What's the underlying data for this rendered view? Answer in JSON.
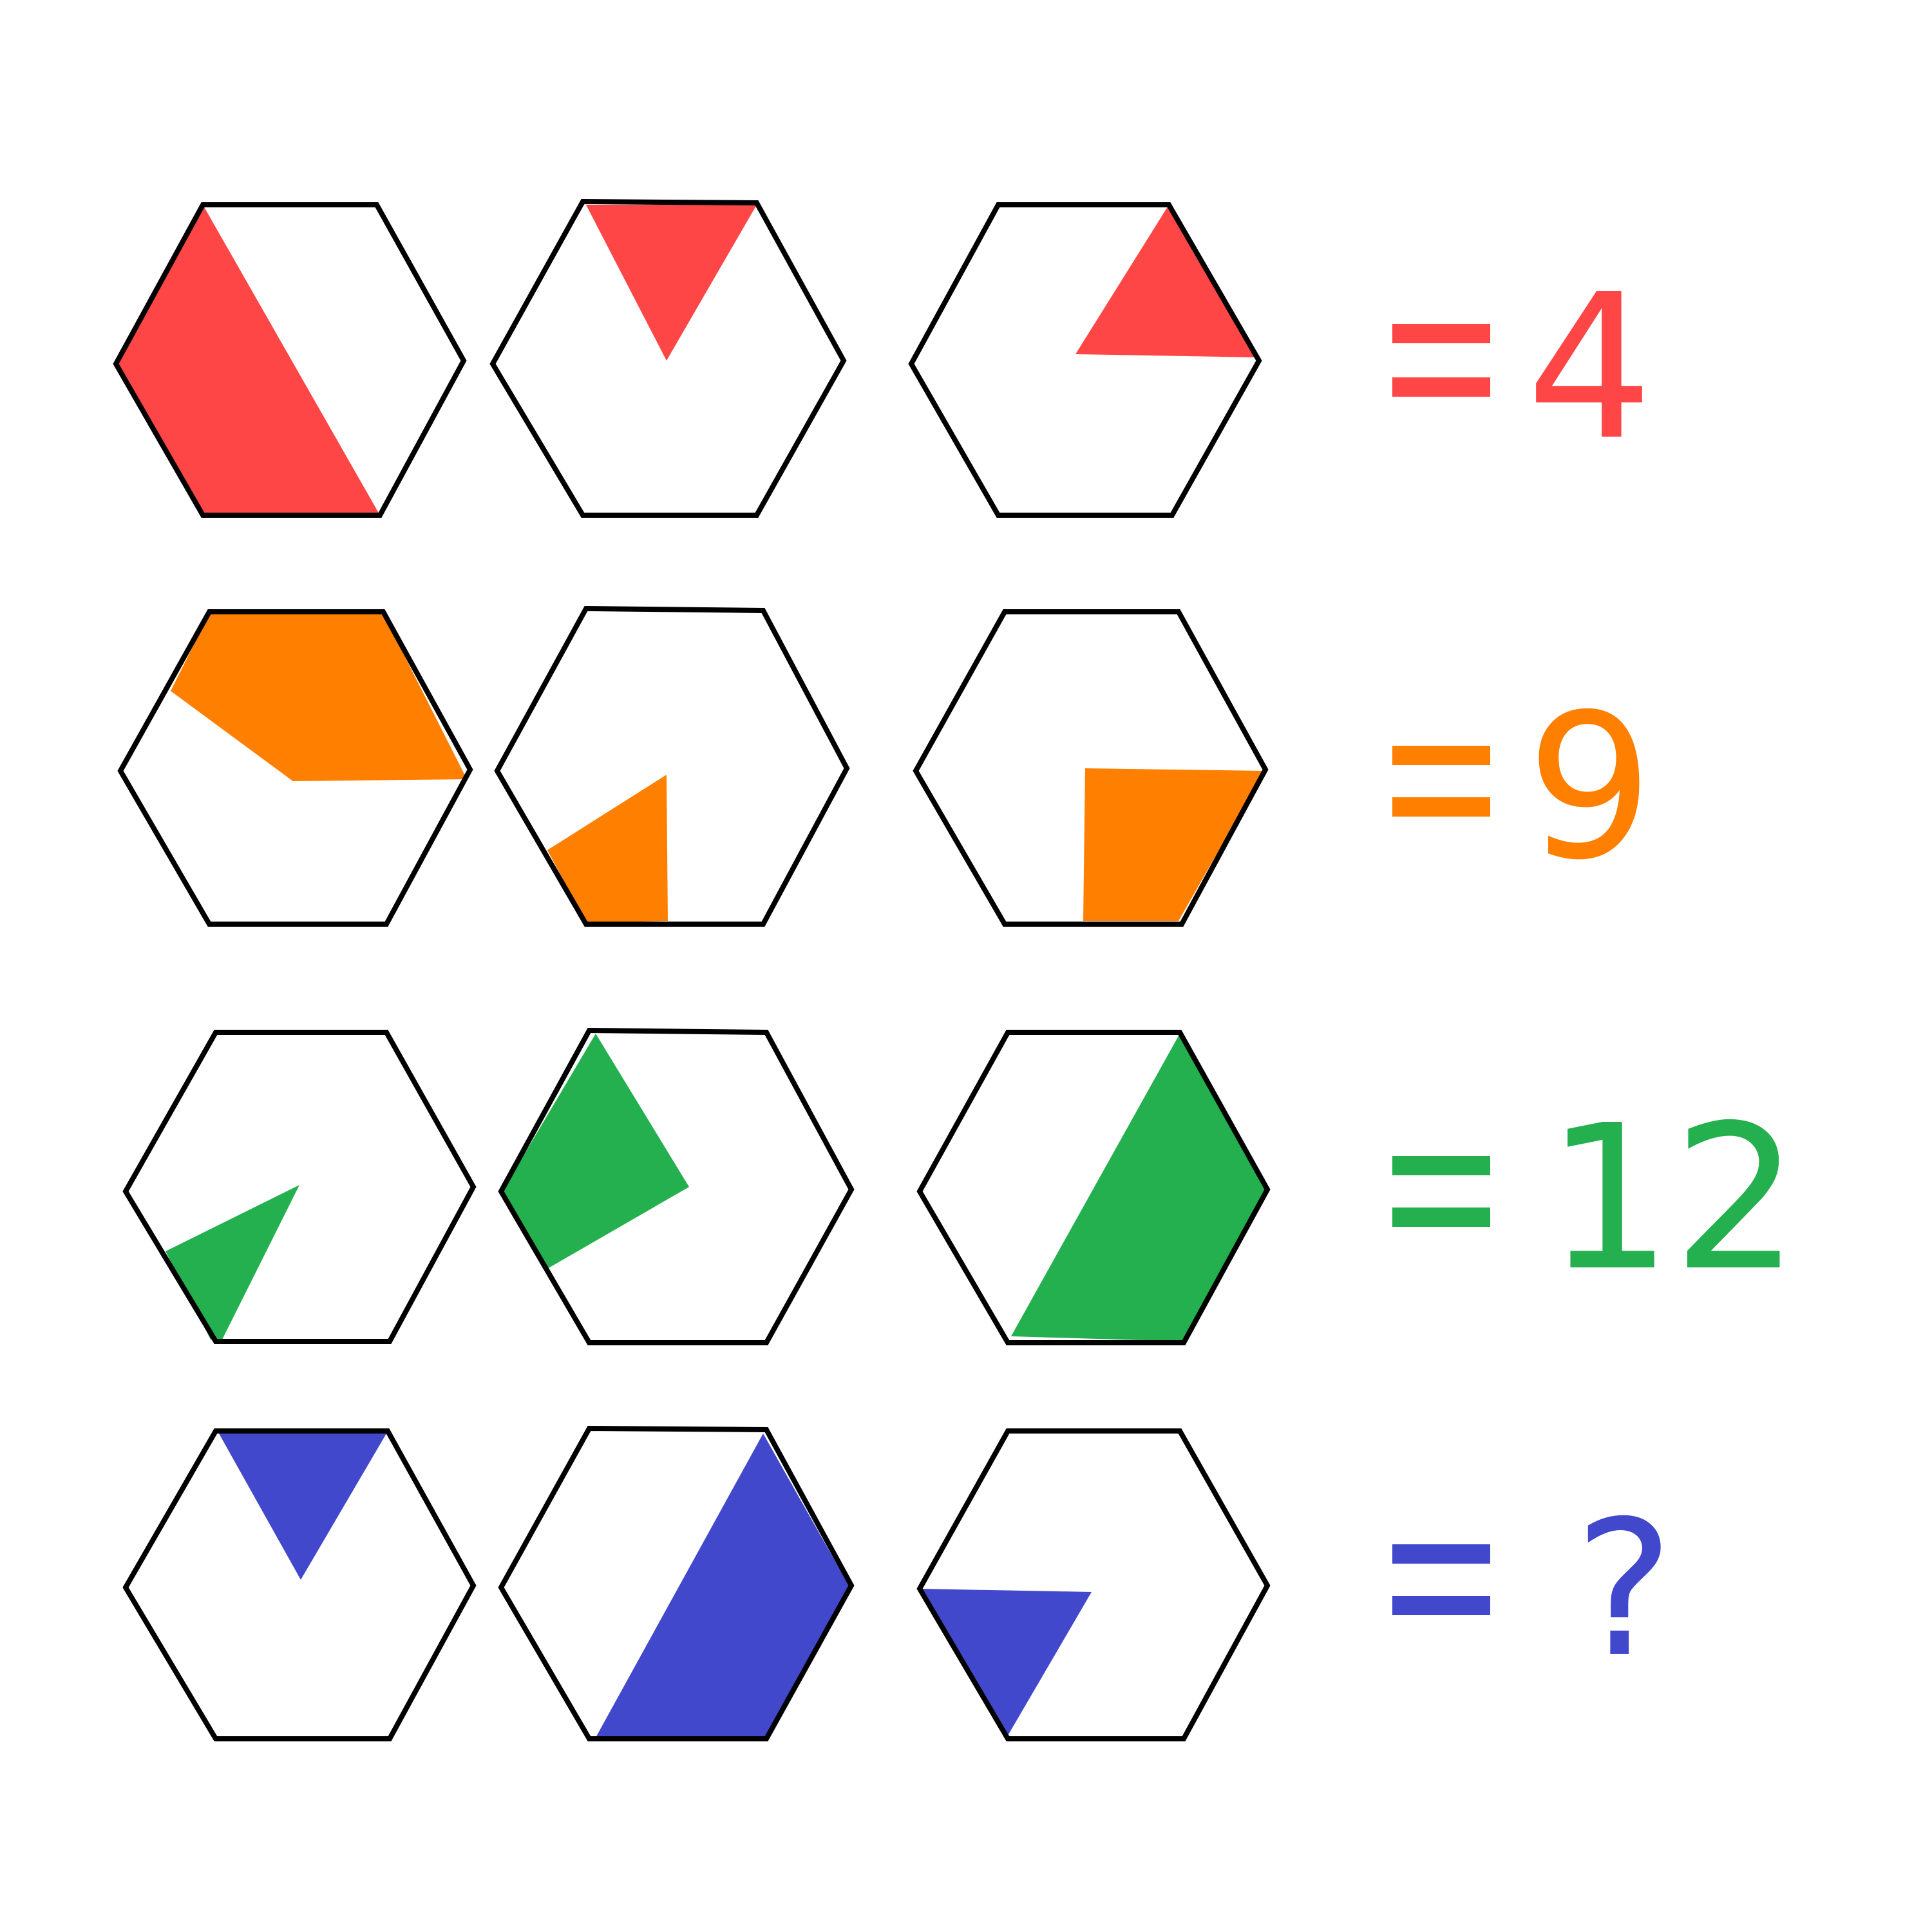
{
  "rows": [
    {
      "color": "#ff4646",
      "equals_symbol": "=",
      "result": "4",
      "shaded_pattern": [
        "left-band",
        "top-triangle",
        "right-triangle"
      ]
    },
    {
      "color": "#ff8000",
      "equals_symbol": "=",
      "result": "9",
      "shaded_pattern": [
        "top-band",
        "bottom-left-quad",
        "bottom-right-quad"
      ]
    },
    {
      "color": "#24b04f",
      "equals_symbol": "=",
      "result": "12",
      "shaded_pattern": [
        "small-bottom-left",
        "left-sector",
        "right-half"
      ]
    },
    {
      "color": "#4148cb",
      "equals_symbol": "=",
      "result": "?",
      "shaded_pattern": [
        "top-triangle",
        "right-half",
        "lower-left-triangle"
      ]
    }
  ]
}
